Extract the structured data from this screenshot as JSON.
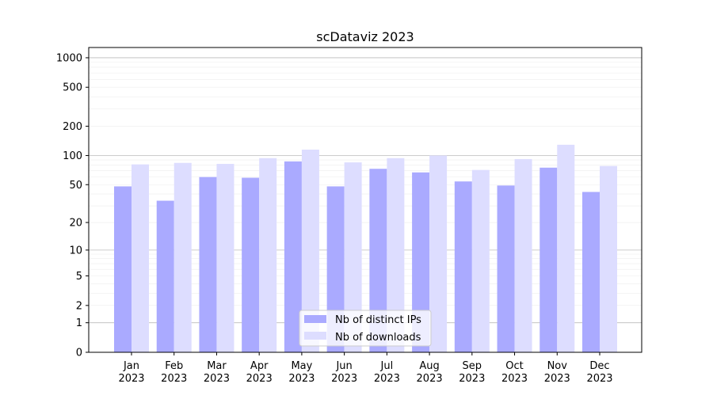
{
  "chart_data": {
    "type": "bar",
    "title": "scDataviz 2023",
    "xlabel": "",
    "ylabel": "",
    "yscale": "symlog (log10(1+y))",
    "ylim": [
      0,
      1270
    ],
    "grid": true,
    "legend_position": "bottom-center",
    "categories": [
      "Jan\n2023",
      "Feb\n2023",
      "Mar\n2023",
      "Apr\n2023",
      "May\n2023",
      "Jun\n2023",
      "Jul\n2023",
      "Aug\n2023",
      "Sep\n2023",
      "Oct\n2023",
      "Nov\n2023",
      "Dec\n2023"
    ],
    "yticks": [
      0,
      1,
      2,
      5,
      10,
      20,
      50,
      100,
      200,
      500,
      1000
    ],
    "ytick_labels": [
      "0",
      "1",
      "2",
      "5",
      "10",
      "20",
      "50",
      "100",
      "200",
      "500",
      "1000"
    ],
    "series": [
      {
        "name": "Nb of distinct IPs",
        "color": "#aaaaff",
        "values": [
          48,
          34,
          60,
          59,
          87,
          48,
          73,
          67,
          54,
          49,
          75,
          42
        ]
      },
      {
        "name": "Nb of downloads",
        "color": "#ddddff",
        "values": [
          81,
          84,
          82,
          94,
          115,
          85,
          94,
          100,
          71,
          92,
          129,
          78
        ]
      }
    ]
  }
}
